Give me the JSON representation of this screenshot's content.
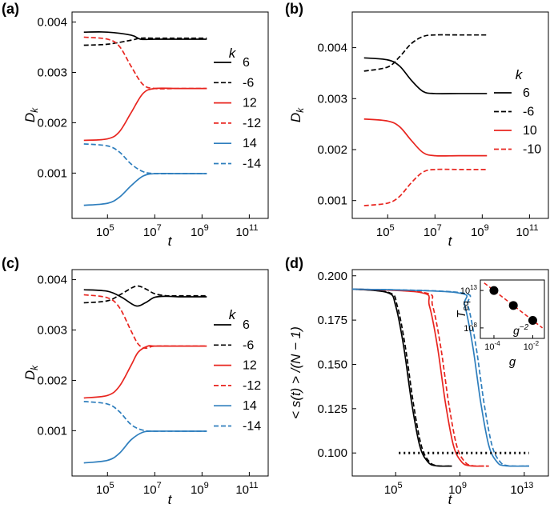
{
  "chart_data": [
    {
      "panel": "(a)",
      "type": "line",
      "xscale": "log",
      "xlim_log10": [
        3.5,
        11.8
      ],
      "xtick_exponents": [
        5,
        7,
        9,
        11
      ],
      "xtick_base": "10",
      "ylim": [
        0.0001,
        0.0042
      ],
      "yticks": [
        "0.001",
        "0.002",
        "0.003",
        "0.004"
      ],
      "ytick_values": [
        0.001,
        0.002,
        0.003,
        0.004
      ],
      "xlabel": "t",
      "ylabel": "D_k",
      "ylabel_main": "D",
      "ylabel_sub": "k",
      "legend_title": "k",
      "legend_position": "right",
      "series": [
        {
          "name": "6",
          "color": "#000000",
          "dash": false,
          "log10_t": [
            4.0,
            5.0,
            6.0,
            6.4,
            7.0,
            8.0,
            9.2
          ],
          "values": [
            0.0038,
            0.0038,
            0.00374,
            0.00366,
            0.00366,
            0.00366,
            0.00366
          ]
        },
        {
          "name": "-6",
          "color": "#000000",
          "dash": true,
          "log10_t": [
            4.0,
            5.0,
            6.0,
            6.4,
            7.0,
            8.0,
            9.2
          ],
          "values": [
            0.00354,
            0.00356,
            0.00364,
            0.00368,
            0.00368,
            0.00368,
            0.00368
          ]
        },
        {
          "name": "12",
          "color": "#e8251f",
          "dash": false,
          "log10_t": [
            4.0,
            5.0,
            5.5,
            6.0,
            6.5,
            7.0,
            8.0,
            9.2
          ],
          "values": [
            0.00165,
            0.00168,
            0.00182,
            0.0022,
            0.00258,
            0.00268,
            0.00268,
            0.00268
          ]
        },
        {
          "name": "-12",
          "color": "#e8251f",
          "dash": true,
          "log10_t": [
            4.0,
            5.0,
            5.5,
            6.0,
            6.5,
            7.0,
            8.0,
            9.2
          ],
          "values": [
            0.0037,
            0.00366,
            0.00352,
            0.00312,
            0.00276,
            0.00268,
            0.00268,
            0.00268
          ]
        },
        {
          "name": "14",
          "color": "#2e7ebd",
          "dash": false,
          "log10_t": [
            4.0,
            5.0,
            5.5,
            6.0,
            6.5,
            7.0,
            8.0,
            9.2
          ],
          "values": [
            0.00036,
            0.0004,
            0.00052,
            0.00075,
            0.00094,
            0.00099,
            0.00099,
            0.00099
          ]
        },
        {
          "name": "-14",
          "color": "#2e7ebd",
          "dash": true,
          "log10_t": [
            4.0,
            5.0,
            5.5,
            6.0,
            6.5,
            7.0,
            8.0,
            9.2
          ],
          "values": [
            0.00158,
            0.00154,
            0.00142,
            0.00118,
            0.00103,
            0.00099,
            0.00099,
            0.00099
          ]
        }
      ]
    },
    {
      "panel": "(b)",
      "type": "line",
      "xscale": "log",
      "xlim_log10": [
        3.5,
        11.8
      ],
      "xtick_exponents": [
        5,
        7,
        9,
        11
      ],
      "xtick_base": "10",
      "ylim": [
        0.00065,
        0.0047
      ],
      "yticks": [
        "0.001",
        "0.002",
        "0.003",
        "0.004"
      ],
      "ytick_values": [
        0.001,
        0.002,
        0.003,
        0.004
      ],
      "xlabel": "t",
      "ylabel": "D_k",
      "ylabel_main": "D",
      "ylabel_sub": "k",
      "legend_title": "k",
      "legend_position": "right",
      "series": [
        {
          "name": "6",
          "color": "#000000",
          "dash": false,
          "log10_t": [
            4.0,
            5.0,
            5.5,
            6.0,
            6.5,
            7.0,
            8.0,
            9.2
          ],
          "values": [
            0.0038,
            0.00376,
            0.00364,
            0.00336,
            0.00314,
            0.0031,
            0.0031,
            0.0031
          ]
        },
        {
          "name": "-6",
          "color": "#000000",
          "dash": true,
          "log10_t": [
            4.0,
            5.0,
            5.5,
            6.0,
            6.5,
            7.0,
            8.0,
            9.2
          ],
          "values": [
            0.00354,
            0.00362,
            0.00382,
            0.00408,
            0.00422,
            0.00425,
            0.00425,
            0.00425
          ]
        },
        {
          "name": "10",
          "color": "#e8251f",
          "dash": false,
          "log10_t": [
            4.0,
            5.0,
            5.5,
            6.0,
            6.5,
            7.0,
            8.0,
            9.2
          ],
          "values": [
            0.0026,
            0.00256,
            0.00245,
            0.00218,
            0.00194,
            0.00188,
            0.00188,
            0.00188
          ]
        },
        {
          "name": "-10",
          "color": "#e8251f",
          "dash": true,
          "log10_t": [
            4.0,
            5.0,
            5.5,
            6.0,
            6.5,
            7.0,
            8.0,
            9.2
          ],
          "values": [
            0.0009,
            0.00095,
            0.00108,
            0.00135,
            0.00156,
            0.00161,
            0.00161,
            0.00161
          ]
        }
      ]
    },
    {
      "panel": "(c)",
      "type": "line",
      "xscale": "log",
      "xlim_log10": [
        3.5,
        11.8
      ],
      "xtick_exponents": [
        5,
        7,
        9,
        11
      ],
      "xtick_base": "10",
      "ylim": [
        0.0001,
        0.0042
      ],
      "yticks": [
        "0.001",
        "0.002",
        "0.003",
        "0.004"
      ],
      "ytick_values": [
        0.001,
        0.002,
        0.003,
        0.004
      ],
      "xlabel": "t",
      "ylabel": "D_k",
      "ylabel_main": "D",
      "ylabel_sub": "k",
      "legend_title": "k",
      "legend_position": "right",
      "series": [
        {
          "name": "6",
          "color": "#000000",
          "dash": false,
          "log10_t": [
            4.0,
            5.0,
            5.6,
            6.2,
            6.6,
            7.0,
            7.5,
            8.0,
            9.2
          ],
          "values": [
            0.0038,
            0.00377,
            0.00365,
            0.00348,
            0.00354,
            0.00365,
            0.00367,
            0.00366,
            0.00366
          ]
        },
        {
          "name": "-6",
          "color": "#000000",
          "dash": true,
          "log10_t": [
            4.0,
            5.0,
            5.6,
            6.2,
            6.6,
            7.0,
            7.5,
            8.0,
            9.2
          ],
          "values": [
            0.00354,
            0.00358,
            0.00372,
            0.00387,
            0.00382,
            0.00372,
            0.00368,
            0.00368,
            0.00368
          ]
        },
        {
          "name": "12",
          "color": "#e8251f",
          "dash": false,
          "log10_t": [
            4.0,
            5.0,
            5.5,
            6.0,
            6.3,
            6.7,
            7.0,
            8.0,
            9.2
          ],
          "values": [
            0.00165,
            0.0017,
            0.00188,
            0.0023,
            0.00256,
            0.00268,
            0.00268,
            0.00268,
            0.00268
          ]
        },
        {
          "name": "-12",
          "color": "#e8251f",
          "dash": true,
          "log10_t": [
            4.0,
            5.0,
            5.5,
            6.0,
            6.3,
            6.6,
            7.0,
            8.0,
            9.2
          ],
          "values": [
            0.0037,
            0.00364,
            0.00345,
            0.00298,
            0.00272,
            0.00264,
            0.00268,
            0.00268,
            0.00268
          ]
        },
        {
          "name": "14",
          "color": "#2e7ebd",
          "dash": false,
          "log10_t": [
            4.0,
            5.0,
            5.5,
            6.0,
            6.5,
            7.0,
            8.0,
            9.2
          ],
          "values": [
            0.00036,
            0.00041,
            0.00055,
            0.00082,
            0.00097,
            0.00099,
            0.00099,
            0.00099
          ]
        },
        {
          "name": "-14",
          "color": "#2e7ebd",
          "dash": true,
          "log10_t": [
            4.0,
            5.0,
            5.5,
            6.0,
            6.5,
            7.0,
            8.0,
            9.2
          ],
          "values": [
            0.00158,
            0.00153,
            0.00138,
            0.00112,
            0.00101,
            0.00099,
            0.00099,
            0.00099
          ]
        }
      ]
    },
    {
      "panel": "(d)",
      "type": "line",
      "xscale": "log",
      "xlim_log10": [
        2.3,
        14.5
      ],
      "xtick_exponents": [
        5,
        9,
        13
      ],
      "xtick_base": "10",
      "ylim": [
        0.087,
        0.2035
      ],
      "yticks": [
        "0.100",
        "0.125",
        "0.150",
        "0.175",
        "0.200"
      ],
      "ytick_values": [
        0.1,
        0.125,
        0.15,
        0.175,
        0.2
      ],
      "xlabel": "t",
      "ylabel": "< s(t) > /(N − 1)",
      "series": [
        {
          "name": "black-solid",
          "color": "#000000",
          "dash": false,
          "log10_t": [
            2.3,
            4.5,
            5.0,
            5.5,
            6.0,
            6.5,
            7.0,
            7.5,
            8.5
          ],
          "values": [
            0.1925,
            0.1905,
            0.183,
            0.16,
            0.128,
            0.104,
            0.095,
            0.0928,
            0.0926
          ]
        },
        {
          "name": "black-dashed",
          "color": "#000000",
          "dash": true,
          "log10_t": [
            2.3,
            4.6,
            5.1,
            5.6,
            6.1,
            6.6,
            7.1,
            7.6,
            8.5
          ],
          "values": [
            0.1925,
            0.1905,
            0.183,
            0.16,
            0.128,
            0.104,
            0.095,
            0.0928,
            0.0926
          ]
        },
        {
          "name": "red-solid",
          "color": "#e8251f",
          "dash": false,
          "log10_t": [
            2.3,
            6.6,
            7.1,
            7.6,
            8.1,
            8.6,
            9.1,
            9.6,
            10.5
          ],
          "values": [
            0.1925,
            0.1905,
            0.183,
            0.16,
            0.128,
            0.104,
            0.095,
            0.0928,
            0.0926
          ]
        },
        {
          "name": "red-dashed",
          "color": "#e8251f",
          "dash": true,
          "log10_t": [
            2.3,
            6.8,
            7.3,
            7.8,
            8.3,
            8.8,
            9.3,
            9.8,
            10.8
          ],
          "values": [
            0.1925,
            0.1905,
            0.183,
            0.16,
            0.128,
            0.104,
            0.095,
            0.0928,
            0.0926
          ]
        },
        {
          "name": "blue-solid",
          "color": "#2e7ebd",
          "dash": false,
          "log10_t": [
            2.3,
            8.8,
            9.3,
            9.8,
            10.3,
            10.8,
            11.3,
            11.8,
            13.3
          ],
          "values": [
            0.1925,
            0.1905,
            0.183,
            0.16,
            0.128,
            0.104,
            0.095,
            0.0928,
            0.0926
          ]
        },
        {
          "name": "blue-dashed",
          "color": "#2e7ebd",
          "dash": true,
          "log10_t": [
            2.3,
            9.0,
            9.5,
            10.0,
            10.5,
            11.0,
            11.5,
            12.0,
            13.3
          ],
          "values": [
            0.1925,
            0.1905,
            0.183,
            0.16,
            0.128,
            0.104,
            0.095,
            0.0928,
            0.0926
          ]
        }
      ],
      "reference_line": {
        "style": "dotted",
        "color": "#000000",
        "log10_t": [
          5.2,
          13.3
        ],
        "value": 0.1
      },
      "inset": {
        "type": "scatter",
        "xscale": "log",
        "yscale": "log",
        "xlim_log10": [
          -4.7,
          -1.4
        ],
        "ylim_log10": [
          6.6,
          14.4
        ],
        "xtick_exponents": [
          -4,
          -2
        ],
        "ytick_exponents": [
          8,
          13
        ],
        "xlabel": "g",
        "ylabel_main": "T",
        "ylabel_sub": "eq",
        "annotation_base": "g",
        "annotation_exp": "−2",
        "points_log10_g": [
          -4.0,
          -3.0,
          -2.0
        ],
        "points_log10_T": [
          13.0,
          11.0,
          9.0
        ],
        "fit_line": {
          "color": "#e8251f",
          "dash": true,
          "log10_g": [
            -4.5,
            -1.5
          ],
          "log10_T": [
            14.0,
            8.0
          ]
        }
      }
    }
  ]
}
